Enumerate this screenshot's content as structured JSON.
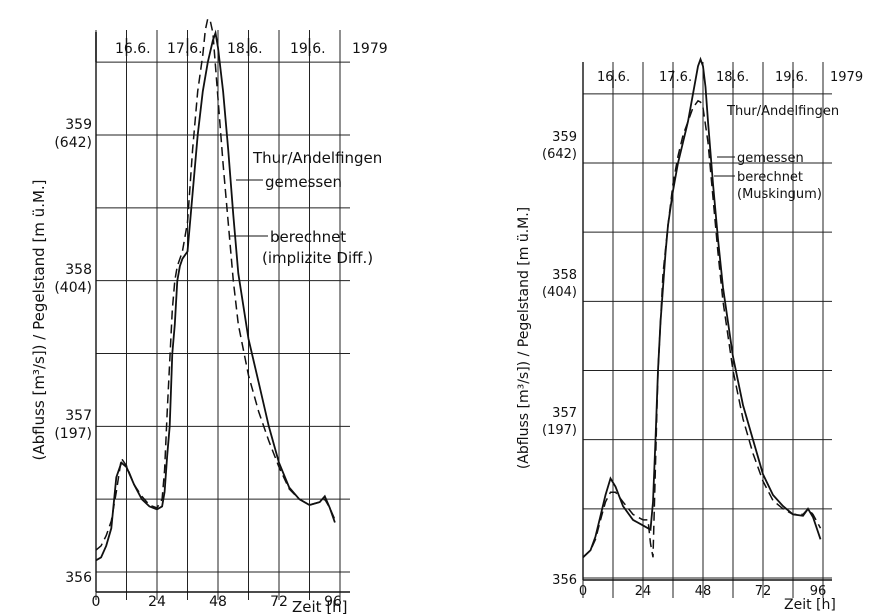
{
  "chart_data": [
    {
      "type": "line",
      "year": "1979",
      "date_labels": [
        "16.6.",
        "17.6.",
        "18.6.",
        "19.6."
      ],
      "xlabel": "Zeit [h]",
      "ylabel": "(Abfluss [m³/s])  /  Pegelstand  [m ü.M.]",
      "x_ticks": [
        "0",
        "24",
        "48",
        "72",
        "96"
      ],
      "y_ticks": [
        {
          "level": "356",
          "flow": ""
        },
        {
          "level": "357",
          "flow": "(197)"
        },
        {
          "level": "358",
          "flow": "(404)"
        },
        {
          "level": "359",
          "flow": "(642)"
        }
      ],
      "xlim": [
        -4,
        100
      ],
      "ylim": [
        355.85,
        359.9
      ],
      "grid": true,
      "annotations": [
        "Thur/Andelfingen",
        "gemessen",
        "berechnet",
        "(implizite Diff.)"
      ],
      "series": [
        {
          "name": "gemessen",
          "style": "solid",
          "x": [
            0,
            2,
            4,
            6,
            8,
            10,
            12,
            15,
            18,
            21,
            24,
            26,
            27,
            28,
            29,
            30,
            31,
            32,
            33,
            34,
            36,
            38,
            40,
            42,
            44,
            46,
            47,
            48,
            50,
            52,
            54,
            56,
            60,
            64,
            68,
            72,
            76,
            80,
            84,
            88,
            90,
            92,
            94
          ],
          "y": [
            356.08,
            356.1,
            356.18,
            356.3,
            356.65,
            356.75,
            356.72,
            356.6,
            356.5,
            356.45,
            356.43,
            356.45,
            356.55,
            356.8,
            357.0,
            357.5,
            357.7,
            358.0,
            358.1,
            358.15,
            358.2,
            358.6,
            359.0,
            359.3,
            359.5,
            359.65,
            359.7,
            359.6,
            359.3,
            358.9,
            358.45,
            358.05,
            357.6,
            357.3,
            357.0,
            356.75,
            356.58,
            356.5,
            356.46,
            356.48,
            356.52,
            356.44,
            356.34
          ]
        },
        {
          "name": "berechnet",
          "style": "dashed",
          "x": [
            0,
            2,
            4,
            6,
            8,
            10,
            12,
            15,
            18,
            21,
            24,
            26,
            27,
            28,
            30,
            31,
            32,
            33,
            34,
            36,
            38,
            40,
            42,
            43,
            44,
            45,
            46,
            48,
            50,
            52,
            54,
            56,
            60,
            64,
            68,
            72,
            76,
            80,
            84,
            88,
            90,
            92,
            94
          ],
          "y": [
            356.15,
            356.18,
            356.25,
            356.35,
            356.55,
            356.78,
            356.73,
            356.6,
            356.52,
            356.46,
            356.44,
            356.5,
            356.7,
            357.1,
            357.8,
            358.0,
            358.1,
            358.15,
            358.2,
            358.4,
            358.9,
            359.3,
            359.55,
            359.72,
            359.8,
            359.78,
            359.7,
            359.25,
            358.8,
            358.4,
            358.0,
            357.7,
            357.35,
            357.1,
            356.9,
            356.72,
            356.57,
            356.5,
            356.46,
            356.48,
            356.5,
            356.44,
            356.36
          ]
        }
      ]
    },
    {
      "type": "line",
      "year": "1979",
      "date_labels": [
        "16.6.",
        "17.6.",
        "18.6.",
        "19.6."
      ],
      "xlabel": "Zeit [h]",
      "ylabel": "(Abfluss [m³/s])  /  Pegelstand  [m ü.M.]",
      "x_ticks": [
        "0",
        "24",
        "48",
        "72",
        "96"
      ],
      "y_ticks": [
        {
          "level": "356",
          "flow": ""
        },
        {
          "level": "357",
          "flow": "(197)"
        },
        {
          "level": "358",
          "flow": "(404)"
        },
        {
          "level": "359",
          "flow": "(642)"
        }
      ],
      "xlim": [
        -4,
        100
      ],
      "ylim": [
        355.85,
        359.9
      ],
      "grid": true,
      "annotations": [
        "Thur/Andelfingen",
        "gemessen",
        "berechnet",
        "(Muskingum)"
      ],
      "series": [
        {
          "name": "gemessen",
          "style": "solid",
          "x": [
            0,
            3,
            5,
            7,
            9,
            11,
            13,
            16,
            20,
            24,
            27,
            28,
            29,
            30,
            31,
            32,
            33,
            34,
            36,
            38,
            40,
            42,
            44,
            46,
            47,
            48,
            49,
            50,
            52,
            54,
            56,
            60,
            64,
            68,
            72,
            76,
            80,
            84,
            88,
            90,
            92,
            95
          ],
          "y": [
            356.15,
            356.2,
            356.3,
            356.45,
            356.6,
            356.72,
            356.66,
            356.52,
            356.42,
            356.38,
            356.35,
            356.55,
            357.0,
            357.5,
            357.85,
            358.1,
            358.35,
            358.55,
            358.8,
            359.0,
            359.15,
            359.3,
            359.5,
            359.7,
            359.75,
            359.7,
            359.55,
            359.3,
            358.85,
            358.45,
            358.1,
            357.6,
            357.25,
            357.0,
            356.75,
            356.6,
            356.52,
            356.46,
            356.45,
            356.5,
            356.44,
            356.28
          ]
        },
        {
          "name": "berechnet",
          "style": "dashed",
          "x": [
            0,
            3,
            5,
            7,
            9,
            11,
            13,
            16,
            20,
            24,
            26,
            27,
            28,
            30,
            32,
            34,
            36,
            38,
            40,
            42,
            44,
            46,
            47,
            48,
            50,
            52,
            54,
            56,
            60,
            64,
            68,
            72,
            76,
            80,
            84,
            88,
            90,
            92,
            95
          ],
          "y": [
            356.15,
            356.2,
            356.28,
            356.42,
            356.55,
            356.62,
            356.62,
            356.55,
            356.46,
            356.42,
            356.42,
            356.25,
            356.15,
            357.5,
            358.2,
            358.55,
            358.85,
            359.05,
            359.2,
            359.3,
            359.4,
            359.45,
            359.44,
            359.4,
            359.15,
            358.75,
            358.35,
            358.0,
            357.5,
            357.15,
            356.9,
            356.7,
            356.56,
            356.5,
            356.46,
            356.46,
            356.5,
            356.46,
            356.36
          ]
        }
      ]
    }
  ]
}
